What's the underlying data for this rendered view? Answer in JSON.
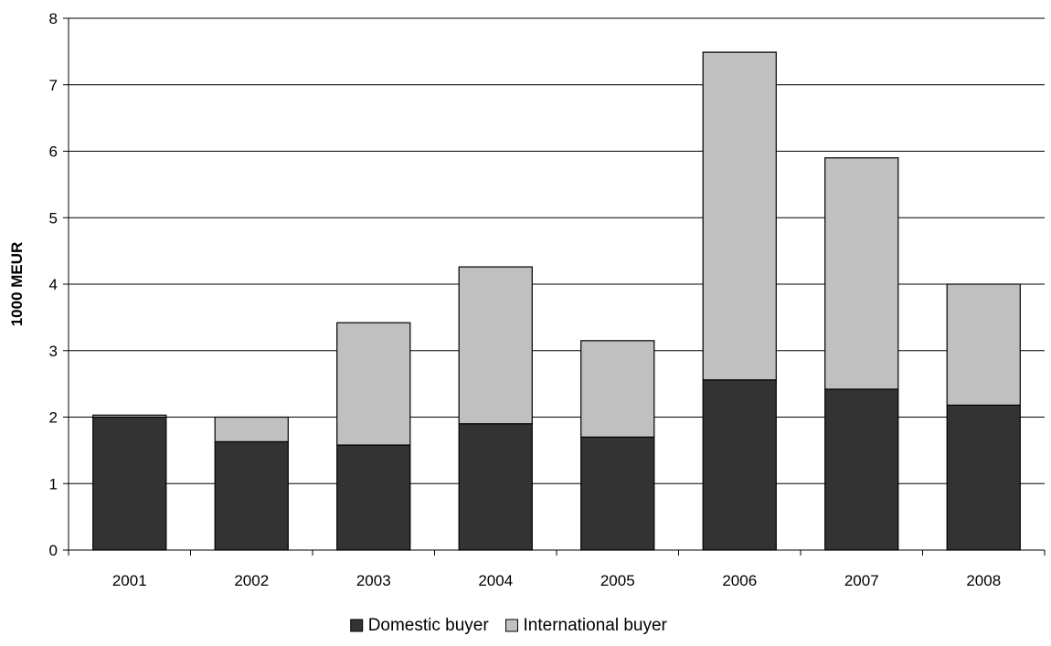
{
  "chart_data": {
    "type": "bar",
    "stacked": true,
    "title": "",
    "xlabel": "",
    "ylabel": "1000 MEUR",
    "ylim": [
      0,
      8
    ],
    "yticks": [
      0,
      1,
      2,
      3,
      4,
      5,
      6,
      7,
      8
    ],
    "grid": true,
    "legend_position": "bottom",
    "categories": [
      "2001",
      "2002",
      "2003",
      "2004",
      "2005",
      "2006",
      "2007",
      "2008"
    ],
    "series": [
      {
        "name": "Domestic buyer",
        "color": "#333333",
        "values": [
          2.0,
          1.63,
          1.58,
          1.9,
          1.7,
          2.56,
          2.42,
          2.18
        ]
      },
      {
        "name": "International buyer",
        "color": "#c0c0c0",
        "values": [
          0.03,
          0.37,
          1.84,
          2.36,
          1.45,
          4.93,
          3.48,
          1.82
        ]
      }
    ]
  }
}
